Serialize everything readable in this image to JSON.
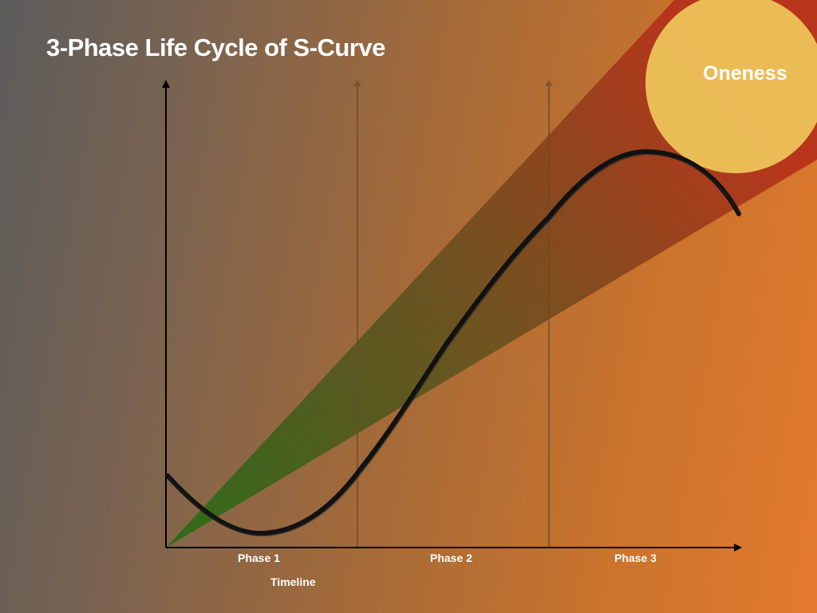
{
  "title": "3-Phase Life Cycle of S-Curve",
  "oneness_label": "Oneness",
  "phases": [
    "Phase 1",
    "Phase 2",
    "Phase 3"
  ],
  "x_axis_label": "Timeline",
  "colors": {
    "circle": "#edc35a",
    "cone_start": "#2e6b1a",
    "cone_end": "#b2301c",
    "curve": "#111111"
  }
}
